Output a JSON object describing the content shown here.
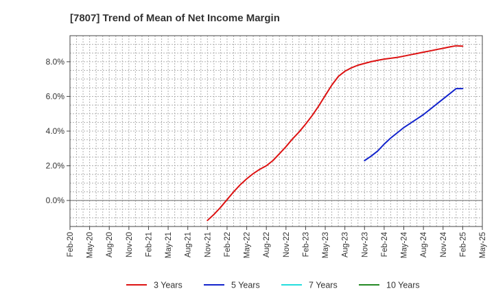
{
  "chart_data": {
    "type": "line",
    "title": "[7807]  Trend of Mean of Net Income Margin",
    "xlabel": "",
    "ylabel": "",
    "x_ticks": [
      "Feb-20",
      "May-20",
      "Aug-20",
      "Nov-20",
      "Feb-21",
      "May-21",
      "Aug-21",
      "Nov-21",
      "Feb-22",
      "May-22",
      "Aug-22",
      "Nov-22",
      "Feb-23",
      "May-23",
      "Aug-23",
      "Nov-23",
      "Feb-24",
      "May-24",
      "Aug-24",
      "Nov-24",
      "Feb-25",
      "May-25"
    ],
    "y_ticks": [
      "0.0%",
      "2.0%",
      "4.0%",
      "6.0%",
      "8.0%"
    ],
    "y_tick_values": [
      0,
      2,
      4,
      6,
      8
    ],
    "ylim": [
      -1.5,
      9.5
    ],
    "grid": true,
    "legend_position": "bottom",
    "series": [
      {
        "name": "3 Years",
        "color": "#dd1111",
        "x": [
          "Nov-21",
          "Dec-21",
          "Jan-22",
          "Feb-22",
          "Mar-22",
          "Apr-22",
          "May-22",
          "Jun-22",
          "Jul-22",
          "Aug-22",
          "Sep-22",
          "Oct-22",
          "Nov-22",
          "Dec-22",
          "Jan-23",
          "Feb-23",
          "Mar-23",
          "Apr-23",
          "May-23",
          "Jun-23",
          "Jul-23",
          "Aug-23",
          "Sep-23",
          "Oct-23",
          "Nov-23",
          "Dec-23",
          "Jan-24",
          "Feb-24",
          "Mar-24",
          "Apr-24",
          "May-24",
          "Jun-24",
          "Jul-24",
          "Aug-24",
          "Sep-24",
          "Oct-24",
          "Nov-24",
          "Dec-24",
          "Jan-25",
          "Feb-25"
        ],
        "values": [
          -1.15,
          -0.8,
          -0.4,
          0.05,
          0.5,
          0.9,
          1.25,
          1.55,
          1.8,
          2.0,
          2.3,
          2.7,
          3.1,
          3.55,
          3.95,
          4.4,
          4.9,
          5.45,
          6.05,
          6.65,
          7.15,
          7.45,
          7.65,
          7.8,
          7.9,
          8.0,
          8.08,
          8.15,
          8.2,
          8.25,
          8.32,
          8.4,
          8.47,
          8.55,
          8.62,
          8.7,
          8.77,
          8.85,
          8.92,
          8.9
        ]
      },
      {
        "name": "5 Years",
        "color": "#1122cc",
        "x": [
          "Nov-23",
          "Dec-23",
          "Jan-24",
          "Feb-24",
          "Mar-24",
          "Apr-24",
          "May-24",
          "Jun-24",
          "Jul-24",
          "Aug-24",
          "Sep-24",
          "Oct-24",
          "Nov-24",
          "Dec-24",
          "Jan-25",
          "Feb-25"
        ],
        "values": [
          2.3,
          2.55,
          2.85,
          3.25,
          3.6,
          3.9,
          4.2,
          4.45,
          4.7,
          4.95,
          5.25,
          5.55,
          5.85,
          6.15,
          6.45,
          6.45
        ]
      },
      {
        "name": "7 Years",
        "color": "#22dddd",
        "x": [],
        "values": []
      },
      {
        "name": "10 Years",
        "color": "#228822",
        "x": [],
        "values": []
      }
    ]
  }
}
